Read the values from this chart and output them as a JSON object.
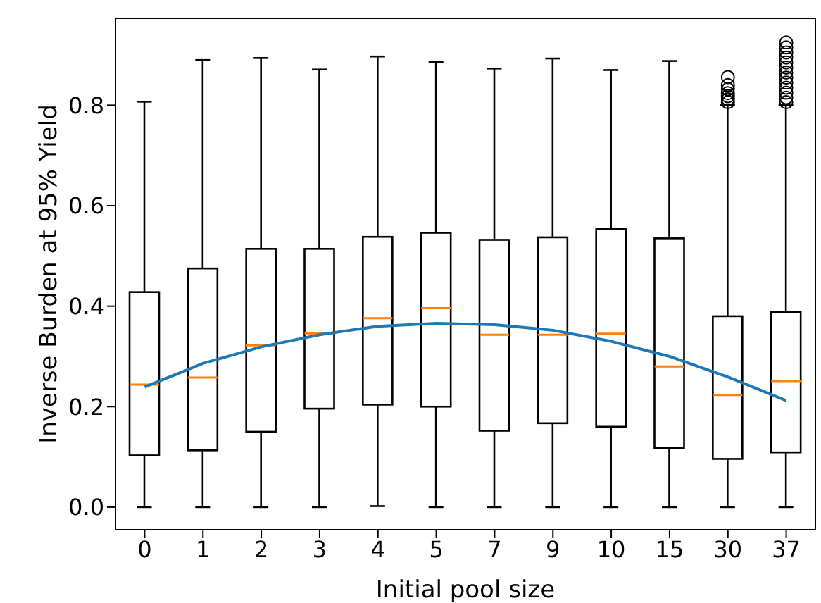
{
  "chart_data": {
    "type": "box",
    "xlabel": "Initial pool size",
    "ylabel": "Inverse Burden at 95% Yield",
    "categories": [
      "0",
      "1",
      "2",
      "3",
      "4",
      "5",
      "7",
      "9",
      "10",
      "15",
      "30",
      "37"
    ],
    "boxes": [
      {
        "low": 0,
        "q1": 0.103,
        "median": 0.244,
        "q3": 0.428,
        "high": 0.807
      },
      {
        "low": 0,
        "q1": 0.113,
        "median": 0.258,
        "q3": 0.475,
        "high": 0.89
      },
      {
        "low": 0,
        "q1": 0.15,
        "median": 0.322,
        "q3": 0.514,
        "high": 0.894
      },
      {
        "low": 0,
        "q1": 0.196,
        "median": 0.346,
        "q3": 0.514,
        "high": 0.871
      },
      {
        "low": 0.002,
        "q1": 0.204,
        "median": 0.376,
        "q3": 0.538,
        "high": 0.897
      },
      {
        "low": 0,
        "q1": 0.2,
        "median": 0.396,
        "q3": 0.546,
        "high": 0.886
      },
      {
        "low": 0,
        "q1": 0.152,
        "median": 0.343,
        "q3": 0.532,
        "high": 0.873
      },
      {
        "low": 0,
        "q1": 0.167,
        "median": 0.343,
        "q3": 0.537,
        "high": 0.893
      },
      {
        "low": 0,
        "q1": 0.16,
        "median": 0.345,
        "q3": 0.554,
        "high": 0.87
      },
      {
        "low": 0,
        "q1": 0.118,
        "median": 0.28,
        "q3": 0.535,
        "high": 0.888
      },
      {
        "low": 0,
        "q1": 0.096,
        "median": 0.223,
        "q3": 0.38,
        "high": 0.8,
        "outliers": [
          0.806,
          0.812,
          0.818,
          0.824,
          0.832,
          0.84,
          0.856
        ]
      },
      {
        "low": 0,
        "q1": 0.109,
        "median": 0.251,
        "q3": 0.388,
        "high": 0.8,
        "outliers": [
          0.806,
          0.815,
          0.825,
          0.835,
          0.845,
          0.855,
          0.865,
          0.875,
          0.885,
          0.895,
          0.905,
          0.915,
          0.925
        ]
      }
    ],
    "series": [
      {
        "type": "line",
        "color": "#1f77b4",
        "values": [
          0.239,
          0.286,
          0.319,
          0.343,
          0.36,
          0.366,
          0.363,
          0.352,
          0.33,
          0.3,
          0.259,
          0.212
        ]
      }
    ],
    "ylim": [
      -0.045,
      0.973
    ],
    "yticks": [
      {
        "value": 0,
        "label": "0.0"
      },
      {
        "value": 0.2,
        "label": "0.2"
      },
      {
        "value": 0.4,
        "label": "0.4"
      },
      {
        "value": 0.6,
        "label": "0.6"
      },
      {
        "value": 0.8,
        "label": "0.8"
      }
    ],
    "grid": false,
    "legend": false
  }
}
